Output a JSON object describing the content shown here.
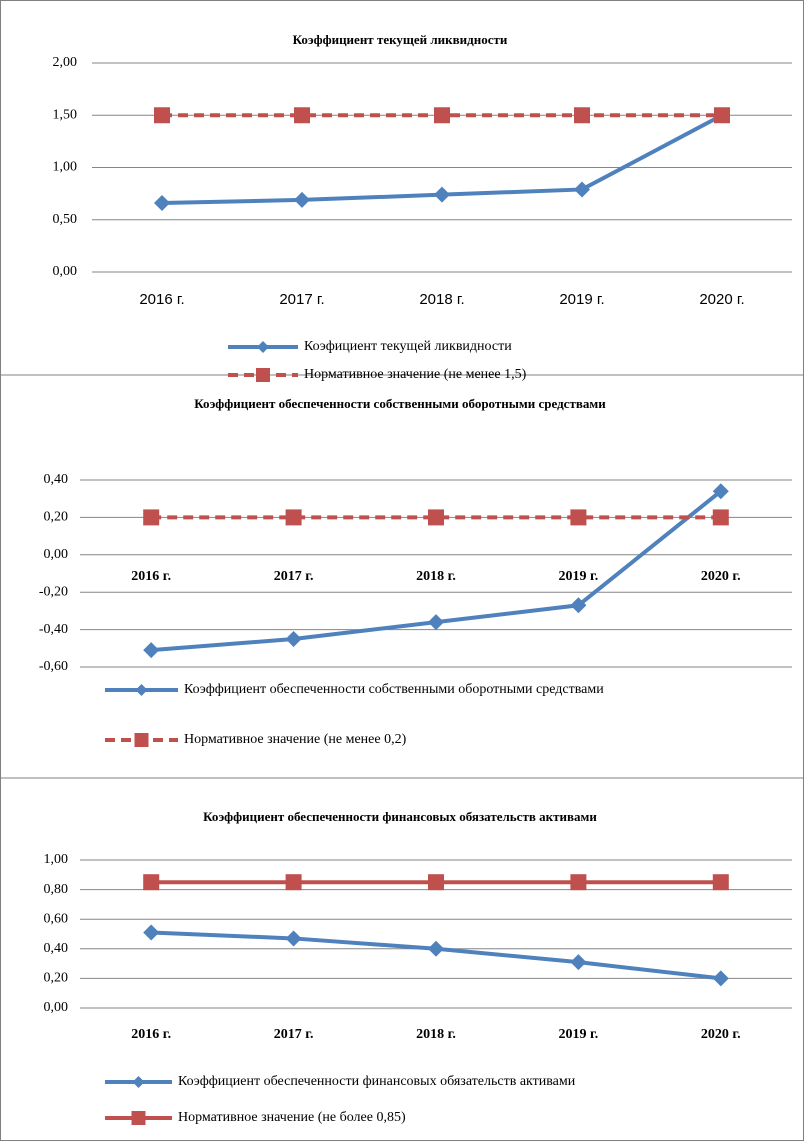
{
  "chart_data": [
    {
      "type": "line",
      "title": "Коэффициент текущей ликвидности",
      "categories": [
        "2016 г.",
        "2017 г.",
        "2018 г.",
        "2019 г.",
        "2020 г."
      ],
      "series": [
        {
          "name": "Коэфициент текущей ликвидности",
          "color": "#4f81bd",
          "marker": "diamond",
          "dashed": false,
          "values": [
            0.66,
            0.69,
            0.74,
            0.79,
            1.5
          ]
        },
        {
          "name": "Нормативное значение (не менее 1,5)",
          "color": "#c0504d",
          "marker": "square",
          "dashed": true,
          "values": [
            1.5,
            1.5,
            1.5,
            1.5,
            1.5
          ]
        }
      ],
      "ylim": [
        0,
        2
      ],
      "yticks": [
        {
          "value": 0,
          "label": "0,00"
        },
        {
          "value": 0.5,
          "label": "0,50"
        },
        {
          "value": 1,
          "label": "1,00"
        },
        {
          "value": 1.5,
          "label": "1,50"
        },
        {
          "value": 2,
          "label": "2,00"
        }
      ],
      "grid": true
    },
    {
      "type": "line",
      "title": "Коэффициент обеспеченности собственными оборотными средствами",
      "categories": [
        "2016 г.",
        "2017 г.",
        "2018 г.",
        "2019 г.",
        "2020 г."
      ],
      "series": [
        {
          "name": "Коэффициент обеспеченности собственными оборотными средствами",
          "color": "#4f81bd",
          "marker": "diamond",
          "dashed": false,
          "values": [
            -0.51,
            -0.45,
            -0.36,
            -0.27,
            0.34
          ]
        },
        {
          "name": "Нормативное значение (не менее 0,2)",
          "color": "#c0504d",
          "marker": "square",
          "dashed": true,
          "values": [
            0.2,
            0.2,
            0.2,
            0.2,
            0.2
          ]
        }
      ],
      "ylim": [
        -0.6,
        0.4
      ],
      "yticks": [
        {
          "value": -0.6,
          "label": "-0,60"
        },
        {
          "value": -0.4,
          "label": "-0,40"
        },
        {
          "value": -0.2,
          "label": "-0,20"
        },
        {
          "value": 0,
          "label": "0,00"
        },
        {
          "value": 0.2,
          "label": "0,20"
        },
        {
          "value": 0.4,
          "label": "0,40"
        }
      ],
      "grid": true
    },
    {
      "type": "line",
      "title": "Коэффициент обеспеченности финансовых обязательств активами",
      "categories": [
        "2016 г.",
        "2017 г.",
        "2018 г.",
        "2019 г.",
        "2020 г."
      ],
      "series": [
        {
          "name": "Коэффициент обеспеченности финансовых обязательств активами",
          "color": "#4f81bd",
          "marker": "diamond",
          "dashed": false,
          "values": [
            0.51,
            0.47,
            0.4,
            0.31,
            0.2
          ]
        },
        {
          "name": "Нормативное значение (не более 0,85)",
          "color": "#c0504d",
          "marker": "square",
          "dashed": false,
          "values": [
            0.85,
            0.85,
            0.85,
            0.85,
            0.85
          ]
        }
      ],
      "ylim": [
        0,
        1
      ],
      "yticks": [
        {
          "value": 0,
          "label": "0,00"
        },
        {
          "value": 0.2,
          "label": "0,20"
        },
        {
          "value": 0.4,
          "label": "0,40"
        },
        {
          "value": 0.6,
          "label": "0,60"
        },
        {
          "value": 0.8,
          "label": "0,80"
        },
        {
          "value": 1,
          "label": "1,00"
        }
      ],
      "grid": true
    }
  ]
}
